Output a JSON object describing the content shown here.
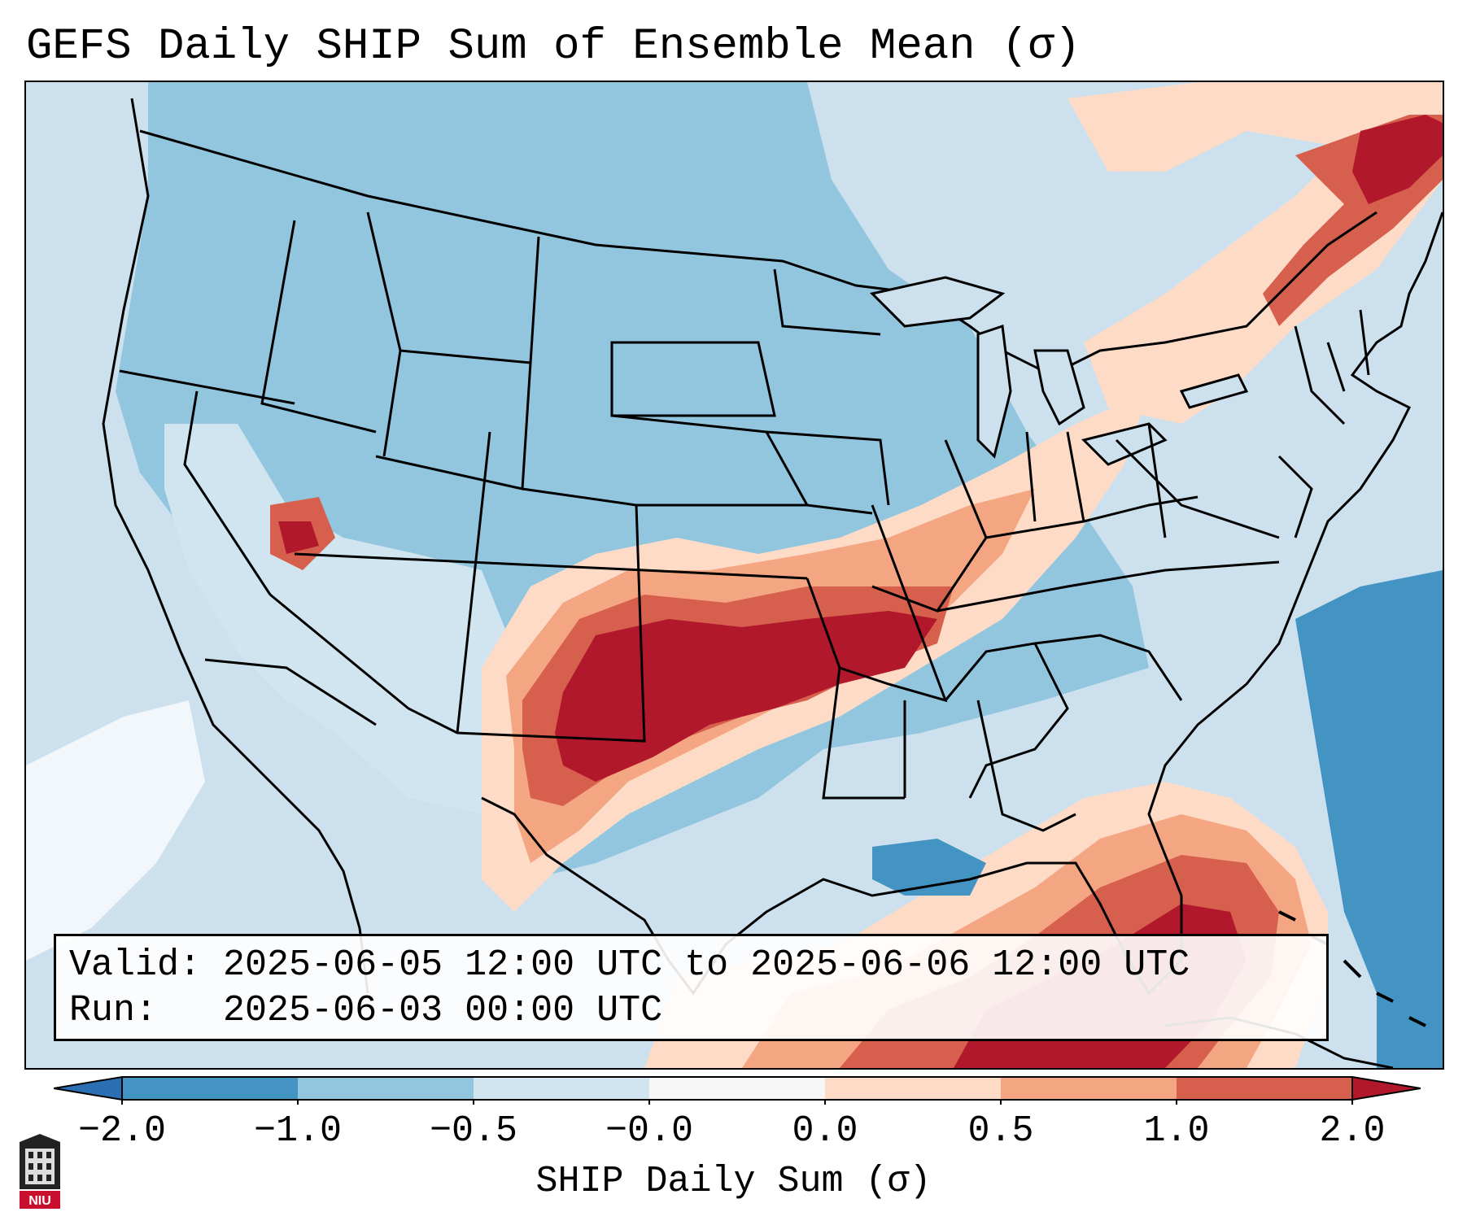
{
  "title": "GEFS Daily SHIP Sum of Ensemble Mean (σ)",
  "info": {
    "valid_label": "Valid:",
    "valid_value": "2025-06-05 12:00 UTC to 2025-06-06 12:00 UTC",
    "run_label": "Run:",
    "run_value": "2025-06-03 00:00 UTC"
  },
  "colorbar": {
    "label": "SHIP Daily Sum (σ)",
    "ticks": [
      "−2.0",
      "−1.0",
      "−0.5",
      "−0.0",
      "0.0",
      "0.5",
      "1.0",
      "2.0"
    ],
    "colors": {
      "extend_low": "#2b6fb3",
      "b_m2_m1": "#4393c3",
      "b_m1_m05": "#92c5de",
      "b_m05_0": "#d1e5f0",
      "b_0": "#f7f7f7",
      "b_0_05": "#fddbc7",
      "b_05_1": "#f4a582",
      "b_1_2": "#d6604d",
      "extend_high": "#b2182b"
    }
  },
  "map": {
    "region": "Contiguous United States",
    "features": [
      "state-borders",
      "coastlines",
      "ship-anomaly-field"
    ]
  },
  "logo_text": "NIU"
}
